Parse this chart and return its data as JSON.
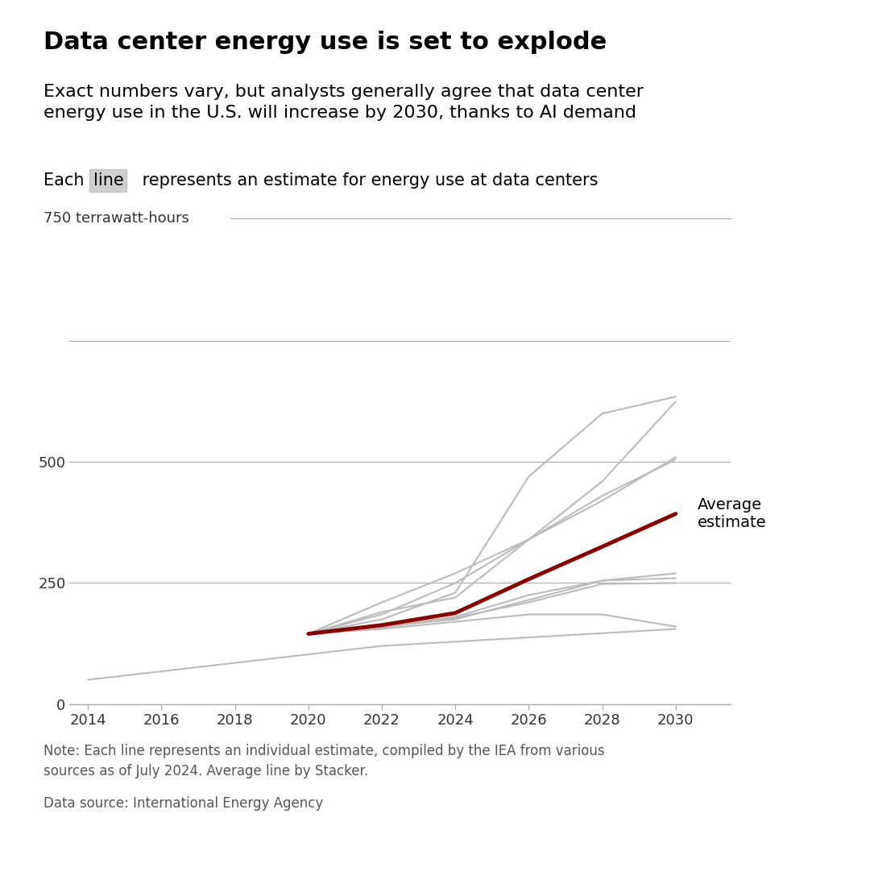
{
  "title": "Data center energy use is set to explode",
  "subtitle": "Exact numbers vary, but analysts generally agree that data center\nenergy use in the U.S. will increase by 2030, thanks to AI demand",
  "ylabel_top": "750 terrawatt-hours",
  "note": "Note: Each line represents an individual estimate, compiled by the IEA from various\nsources as of July 2024. Average line by Stacker.",
  "source": "Data source: International Energy Agency",
  "avg_label": "Average\nestimate",
  "xlim": [
    2013.5,
    2031.5
  ],
  "ylim": [
    0,
    800
  ],
  "yticks": [
    0,
    250,
    500
  ],
  "xticks": [
    2014,
    2016,
    2018,
    2020,
    2022,
    2024,
    2026,
    2028,
    2030
  ],
  "gray_color": "#bbbbbb",
  "red_color": "#8B0000",
  "background_color": "#ffffff",
  "gray_lines": [
    {
      "x": [
        2014,
        2018,
        2022,
        2030
      ],
      "y": [
        50,
        85,
        120,
        155
      ]
    },
    {
      "x": [
        2020,
        2022,
        2024,
        2026,
        2028,
        2030
      ],
      "y": [
        145,
        190,
        220,
        340,
        420,
        510
      ]
    },
    {
      "x": [
        2020,
        2022,
        2024,
        2026,
        2028,
        2030
      ],
      "y": [
        145,
        175,
        230,
        470,
        600,
        635
      ]
    },
    {
      "x": [
        2020,
        2022,
        2024,
        2026,
        2028,
        2030
      ],
      "y": [
        145,
        185,
        250,
        340,
        460,
        625
      ]
    },
    {
      "x": [
        2020,
        2022,
        2024,
        2026,
        2028,
        2030
      ],
      "y": [
        145,
        210,
        270,
        340,
        430,
        505
      ]
    },
    {
      "x": [
        2020,
        2022,
        2024,
        2026,
        2028,
        2030
      ],
      "y": [
        145,
        160,
        175,
        215,
        255,
        260
      ]
    },
    {
      "x": [
        2020,
        2022,
        2024,
        2026,
        2028,
        2030
      ],
      "y": [
        145,
        160,
        180,
        225,
        255,
        270
      ]
    },
    {
      "x": [
        2020,
        2022,
        2024,
        2026,
        2028,
        2030
      ],
      "y": [
        145,
        158,
        178,
        210,
        248,
        250
      ]
    },
    {
      "x": [
        2020,
        2022,
        2024,
        2026,
        2028,
        2030
      ],
      "y": [
        145,
        155,
        170,
        185,
        185,
        160
      ]
    }
  ],
  "avg_line": {
    "x": [
      2020,
      2022,
      2024,
      2026,
      2028,
      2030
    ],
    "y": [
      145,
      163,
      188,
      258,
      325,
      393
    ]
  }
}
